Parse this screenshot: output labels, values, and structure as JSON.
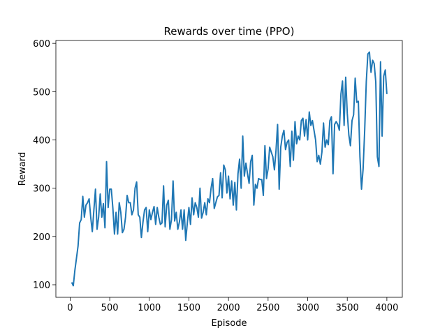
{
  "chart_data": {
    "type": "line",
    "title": "Rewards over time (PPO)",
    "xlabel": "Episode",
    "ylabel": "Reward",
    "color": "#1f77b4",
    "x": [
      20,
      40,
      60,
      80,
      100,
      120,
      140,
      160,
      180,
      200,
      220,
      240,
      260,
      280,
      300,
      320,
      340,
      360,
      380,
      400,
      420,
      440,
      460,
      480,
      500,
      520,
      540,
      560,
      580,
      600,
      620,
      640,
      660,
      680,
      700,
      720,
      740,
      760,
      780,
      800,
      820,
      840,
      860,
      880,
      900,
      920,
      940,
      960,
      980,
      1000,
      1020,
      1040,
      1060,
      1080,
      1100,
      1120,
      1140,
      1160,
      1180,
      1200,
      1220,
      1240,
      1260,
      1280,
      1300,
      1320,
      1340,
      1360,
      1380,
      1400,
      1420,
      1440,
      1460,
      1480,
      1500,
      1520,
      1540,
      1560,
      1580,
      1600,
      1620,
      1640,
      1660,
      1680,
      1700,
      1720,
      1740,
      1760,
      1780,
      1800,
      1820,
      1840,
      1860,
      1880,
      1900,
      1920,
      1940,
      1960,
      1980,
      2000,
      2020,
      2040,
      2060,
      2080,
      2100,
      2120,
      2140,
      2160,
      2180,
      2200,
      2220,
      2240,
      2260,
      2280,
      2300,
      2320,
      2340,
      2360,
      2380,
      2400,
      2420,
      2440,
      2460,
      2480,
      2500,
      2520,
      2540,
      2560,
      2580,
      2600,
      2620,
      2640,
      2660,
      2680,
      2700,
      2720,
      2740,
      2760,
      2780,
      2800,
      2820,
      2840,
      2860,
      2880,
      2900,
      2920,
      2940,
      2960,
      2980,
      3000,
      3020,
      3040,
      3060,
      3080,
      3100,
      3120,
      3140,
      3160,
      3180,
      3200,
      3220,
      3240,
      3260,
      3280,
      3300,
      3320,
      3340,
      3360,
      3380,
      3400,
      3420,
      3440,
      3460,
      3480,
      3500,
      3520,
      3540,
      3560,
      3580,
      3600,
      3620,
      3640,
      3660,
      3680,
      3700,
      3720,
      3740,
      3760,
      3780,
      3800,
      3820,
      3840,
      3860,
      3880,
      3900,
      3920,
      3940,
      3960,
      3980,
      4000
    ],
    "values": [
      105,
      98,
      130,
      155,
      180,
      228,
      235,
      283,
      240,
      265,
      270,
      278,
      240,
      210,
      255,
      298,
      215,
      240,
      288,
      240,
      268,
      218,
      355,
      260,
      298,
      298,
      258,
      205,
      250,
      205,
      270,
      250,
      208,
      215,
      240,
      285,
      270,
      270,
      245,
      255,
      300,
      313,
      245,
      240,
      198,
      230,
      255,
      260,
      210,
      255,
      235,
      250,
      262,
      225,
      260,
      240,
      225,
      228,
      305,
      220,
      265,
      275,
      215,
      235,
      315,
      232,
      250,
      215,
      230,
      255,
      215,
      255,
      192,
      228,
      260,
      225,
      280,
      245,
      270,
      260,
      240,
      300,
      238,
      250,
      270,
      245,
      278,
      270,
      300,
      320,
      258,
      270,
      282,
      285,
      332,
      280,
      348,
      338,
      290,
      325,
      278,
      315,
      265,
      312,
      255,
      330,
      360,
      300,
      408,
      325,
      352,
      330,
      310,
      355,
      368,
      265,
      308,
      300,
      320,
      318,
      318,
      285,
      388,
      320,
      340,
      385,
      375,
      365,
      338,
      378,
      432,
      298,
      385,
      408,
      420,
      380,
      395,
      400,
      345,
      418,
      358,
      438,
      392,
      408,
      400,
      440,
      445,
      408,
      442,
      400,
      458,
      430,
      440,
      420,
      400,
      355,
      368,
      350,
      375,
      435,
      385,
      400,
      390,
      440,
      448,
      330,
      432,
      438,
      432,
      420,
      495,
      522,
      430,
      530,
      455,
      410,
      388,
      440,
      452,
      528,
      478,
      480,
      365,
      298,
      340,
      420,
      520,
      578,
      582,
      540,
      565,
      558,
      520,
      365,
      345,
      562,
      408,
      532,
      545,
      495
    ],
    "xlim": [
      -180,
      4195
    ],
    "ylim": [
      74,
      606
    ],
    "xticks": [
      0,
      500,
      1000,
      1500,
      2000,
      2500,
      3000,
      3500,
      4000
    ],
    "yticks": [
      100,
      200,
      300,
      400,
      500,
      600
    ]
  }
}
